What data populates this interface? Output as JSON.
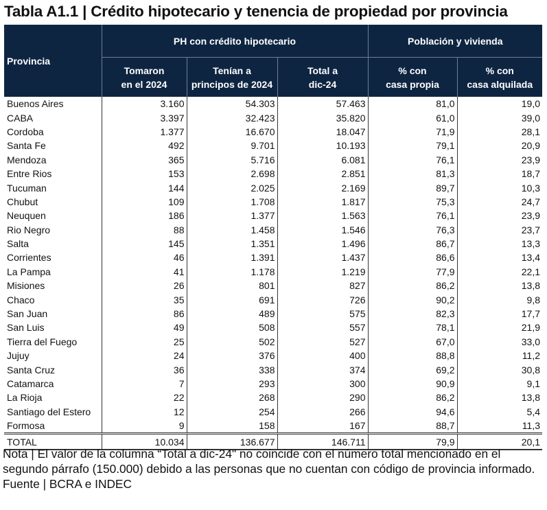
{
  "title": "Tabla A1.1 | Crédito hipotecario y tenencia de propiedad por provincia",
  "header": {
    "provincia": "Provincia",
    "group1": "PH con crédito hipotecario",
    "group2": "Población y vivienda",
    "columns": [
      [
        "Tomaron",
        "en el 2024"
      ],
      [
        "Tenían a",
        "principos de 2024"
      ],
      [
        "Total a",
        "dic-24"
      ],
      [
        "% con",
        "casa propia"
      ],
      [
        "% con",
        "casa alquilada"
      ]
    ]
  },
  "rows": [
    [
      "Buenos Aires",
      "3.160",
      "54.303",
      "57.463",
      "81,0",
      "19,0"
    ],
    [
      "CABA",
      "3.397",
      "32.423",
      "35.820",
      "61,0",
      "39,0"
    ],
    [
      "Cordoba",
      "1.377",
      "16.670",
      "18.047",
      "71,9",
      "28,1"
    ],
    [
      "Santa Fe",
      "492",
      "9.701",
      "10.193",
      "79,1",
      "20,9"
    ],
    [
      "Mendoza",
      "365",
      "5.716",
      "6.081",
      "76,1",
      "23,9"
    ],
    [
      "Entre Rios",
      "153",
      "2.698",
      "2.851",
      "81,3",
      "18,7"
    ],
    [
      "Tucuman",
      "144",
      "2.025",
      "2.169",
      "89,7",
      "10,3"
    ],
    [
      "Chubut",
      "109",
      "1.708",
      "1.817",
      "75,3",
      "24,7"
    ],
    [
      "Neuquen",
      "186",
      "1.377",
      "1.563",
      "76,1",
      "23,9"
    ],
    [
      "Rio Negro",
      "88",
      "1.458",
      "1.546",
      "76,3",
      "23,7"
    ],
    [
      "Salta",
      "145",
      "1.351",
      "1.496",
      "86,7",
      "13,3"
    ],
    [
      "Corrientes",
      "46",
      "1.391",
      "1.437",
      "86,6",
      "13,4"
    ],
    [
      "La Pampa",
      "41",
      "1.178",
      "1.219",
      "77,9",
      "22,1"
    ],
    [
      "Misiones",
      "26",
      "801",
      "827",
      "86,2",
      "13,8"
    ],
    [
      "Chaco",
      "35",
      "691",
      "726",
      "90,2",
      "9,8"
    ],
    [
      "San Juan",
      "86",
      "489",
      "575",
      "82,3",
      "17,7"
    ],
    [
      "San Luis",
      "49",
      "508",
      "557",
      "78,1",
      "21,9"
    ],
    [
      "Tierra del Fuego",
      "25",
      "502",
      "527",
      "67,0",
      "33,0"
    ],
    [
      "Jujuy",
      "24",
      "376",
      "400",
      "88,8",
      "11,2"
    ],
    [
      "Santa Cruz",
      "36",
      "338",
      "374",
      "69,2",
      "30,8"
    ],
    [
      "Catamarca",
      "7",
      "293",
      "300",
      "90,9",
      "9,1"
    ],
    [
      "La Rioja",
      "22",
      "268",
      "290",
      "86,2",
      "13,8"
    ],
    [
      "Santiago del Estero",
      "12",
      "254",
      "266",
      "94,6",
      "5,4"
    ],
    [
      "Formosa",
      "9",
      "158",
      "167",
      "88,7",
      "11,3"
    ]
  ],
  "total": [
    "TOTAL",
    "10.034",
    "136.677",
    "146.711",
    "79,9",
    "20,1"
  ],
  "note": "Nota | El valor de la columna “Total a dic-24\" no coincide con el número total mencionado en el segundo párrafo (150.000) debido a las personas que no cuentan con código de provincia informado.",
  "source": "Fuente | BCRA e INDEC",
  "colors": {
    "header_bg": "#0e2542",
    "header_text": "#ffffff"
  }
}
